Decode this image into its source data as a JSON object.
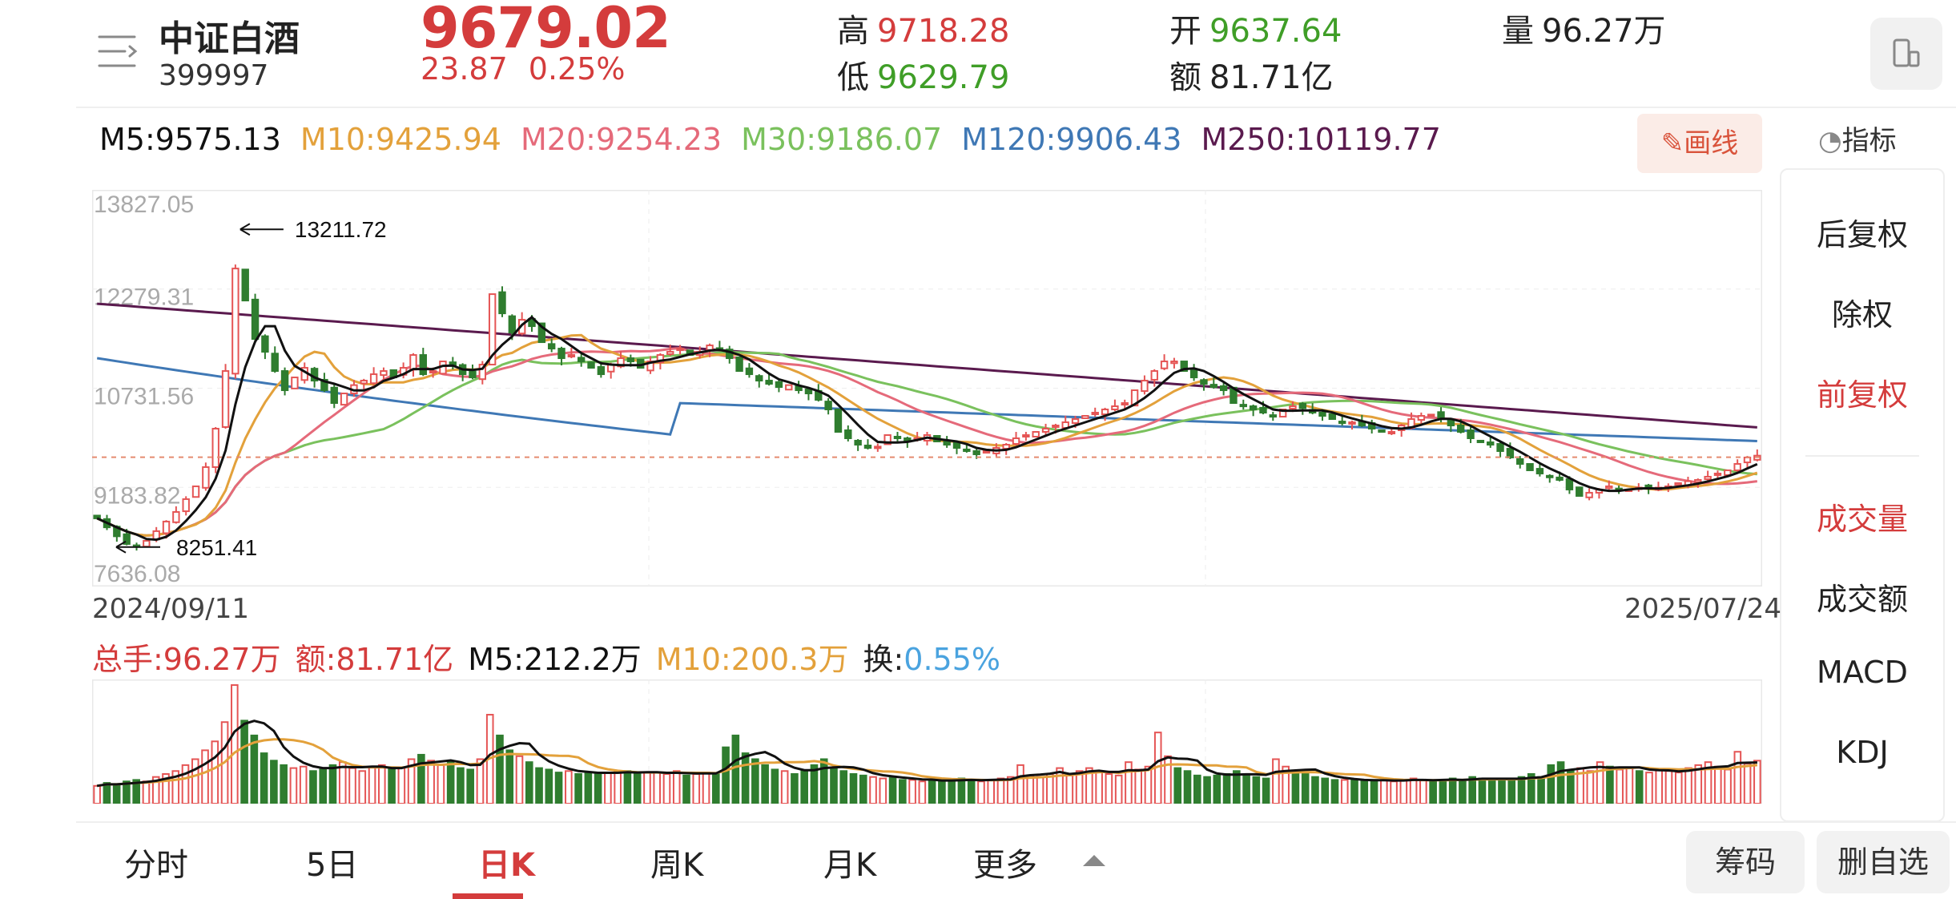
{
  "header": {
    "name": "中证白酒",
    "code": "399997",
    "price": "9679.02",
    "change": "23.87",
    "change_pct": "0.25%",
    "high_label": "高",
    "high": "9718.28",
    "low_label": "低",
    "low": "9629.79",
    "open_label": "开",
    "open": "9637.64",
    "amount_label": "额",
    "amount": "81.71亿",
    "volume_label": "量",
    "volume": "96.27万"
  },
  "ma_legend": {
    "m5": "M5:9575.13",
    "m10": "M10:9425.94",
    "m20": "M20:9254.23",
    "m30": "M30:9186.07",
    "m120": "M120:9906.43",
    "m250": "M250:10119.77"
  },
  "toolbar": {
    "draw_label": "画线",
    "indicator_label": "指标"
  },
  "side_menu": {
    "items": [
      "后复权",
      "除权",
      "前复权",
      "成交量",
      "成交额",
      "MACD",
      "KDJ"
    ]
  },
  "chart_data": {
    "type": "candlestick",
    "y_ticks": [
      "13827.05",
      "12279.31",
      "10731.56",
      "9183.82",
      "7636.08"
    ],
    "ylim": [
      7636.08,
      13827.05
    ],
    "start_date": "2024/09/11",
    "end_date": "2025/07/24",
    "max_annotation": "13211.72",
    "min_annotation": "8251.41",
    "reference_price": 9655.15,
    "close_series": [
      8700,
      8560,
      8420,
      8300,
      8260,
      8350,
      8500,
      8650,
      8800,
      9000,
      9200,
      9500,
      10100,
      11000,
      12600,
      12100,
      11500,
      11300,
      11000,
      10700,
      10900,
      11050,
      10850,
      10700,
      10500,
      10650,
      10780,
      10850,
      10950,
      11000,
      10900,
      11050,
      11250,
      10950,
      11000,
      11150,
      11080,
      10950,
      10900,
      11100,
      12200,
      11900,
      11600,
      11800,
      11700,
      11450,
      11350,
      11200,
      11250,
      11150,
      11050,
      10950,
      11100,
      11200,
      11150,
      11050,
      11150,
      11250,
      11300,
      11350,
      11250,
      11300,
      11400,
      11350,
      11200,
      11000,
      10950,
      10850,
      10800,
      10750,
      10780,
      10700,
      10650,
      10550,
      10400,
      10050,
      9950,
      9850,
      9800,
      9820,
      10000,
      9950,
      9900,
      9950,
      10000,
      9900,
      9850,
      9800,
      9750,
      9700,
      9750,
      9800,
      9850,
      9950,
      10000,
      10050,
      10100,
      10150,
      10200,
      10250,
      10300,
      10350,
      10400,
      10450,
      10500,
      10700,
      10850,
      11000,
      11150,
      11150,
      11000,
      10900,
      10800,
      10750,
      10700,
      10500,
      10450,
      10400,
      10350,
      10300,
      10400,
      10450,
      10420,
      10350,
      10300,
      10250,
      10200,
      10200,
      10150,
      10100,
      10050,
      10050,
      10150,
      10250,
      10300,
      10320,
      10250,
      10150,
      10050,
      9950,
      9900,
      9850,
      9750,
      9650,
      9550,
      9450,
      9400,
      9350,
      9300,
      9150,
      9050,
      9100,
      9150,
      9200,
      9150,
      9150,
      9180,
      9170,
      9180,
      9200,
      9250,
      9280,
      9300,
      9350,
      9400,
      9450,
      9550,
      9650,
      9679.02
    ],
    "ma5_last": 9575.13,
    "ma10_last": 9425.94,
    "ma20_last": 9254.23,
    "ma30_last": 9186.07,
    "ma120_last": 9906.43,
    "ma250_last": 10119.77
  },
  "volume_legend": {
    "total": "总手:96.27万",
    "amount": "额:81.71亿",
    "m5": "M5:212.2万",
    "m10": "M10:200.3万",
    "turnover_label": "换:",
    "turnover": "0.55%"
  },
  "volume_data": {
    "values": [
      1.2,
      1.4,
      1.3,
      1.5,
      1.6,
      1.5,
      1.8,
      2.0,
      2.2,
      2.6,
      3.0,
      3.6,
      4.2,
      5.5,
      8.0,
      5.6,
      4.6,
      3.4,
      2.9,
      2.6,
      2.4,
      2.5,
      2.2,
      2.3,
      2.6,
      2.8,
      2.4,
      2.2,
      2.5,
      2.6,
      2.3,
      2.4,
      3.0,
      3.3,
      2.9,
      2.6,
      2.8,
      2.4,
      2.3,
      3.0,
      6.0,
      4.6,
      3.6,
      3.2,
      2.8,
      2.4,
      2.3,
      2.1,
      2.2,
      2.0,
      2.1,
      2.0,
      2.1,
      2.2,
      2.2,
      2.0,
      2.1,
      2.1,
      2.0,
      2.2,
      1.9,
      2.0,
      2.1,
      2.0,
      3.8,
      4.6,
      3.4,
      3.0,
      2.6,
      2.3,
      2.2,
      2.0,
      2.2,
      2.6,
      3.0,
      2.4,
      2.2,
      2.0,
      1.9,
      1.8,
      1.7,
      1.8,
      1.6,
      1.6,
      1.5,
      1.6,
      1.5,
      1.6,
      1.7,
      1.6,
      1.5,
      1.6,
      1.7,
      1.8,
      2.6,
      1.9,
      1.8,
      2.0,
      2.4,
      1.9,
      2.2,
      2.4,
      2.2,
      2.0,
      1.9,
      2.8,
      2.3,
      2.5,
      4.8,
      3.2,
      2.4,
      2.2,
      1.9,
      1.8,
      1.9,
      2.0,
      2.2,
      2.0,
      1.8,
      1.7,
      3.0,
      2.5,
      2.2,
      2.0,
      1.8,
      1.7,
      1.6,
      1.6,
      1.6,
      1.5,
      1.6,
      1.6,
      1.5,
      1.6,
      1.7,
      1.6,
      1.5,
      1.6,
      1.7,
      1.6,
      1.8,
      1.7,
      1.6,
      1.7,
      1.6,
      1.8,
      2.0,
      1.8,
      2.6,
      2.8,
      2.2,
      2.4,
      2.2,
      2.8,
      2.5,
      2.3,
      2.4,
      2.2,
      2.1,
      2.3,
      2.2,
      2.1,
      2.4,
      2.6,
      2.8,
      2.5,
      2.3,
      3.5,
      2.7,
      2.9
    ]
  },
  "tabs": [
    "分时",
    "5日",
    "日K",
    "周K",
    "月K",
    "更多"
  ],
  "active_tab": "日K",
  "bottom_buttons": {
    "chips": "筹码",
    "remove_watch": "删自选"
  },
  "colors": {
    "up": "#e55555",
    "down": "#2f7d2f",
    "price_red": "#d43c3c",
    "green": "#3f9e27",
    "ma5": "#111111",
    "ma10": "#e3a13b",
    "ma20": "#e56a7a",
    "ma30": "#7ac15d",
    "ma120": "#3f78b5",
    "ma250": "#5a1a4e"
  }
}
